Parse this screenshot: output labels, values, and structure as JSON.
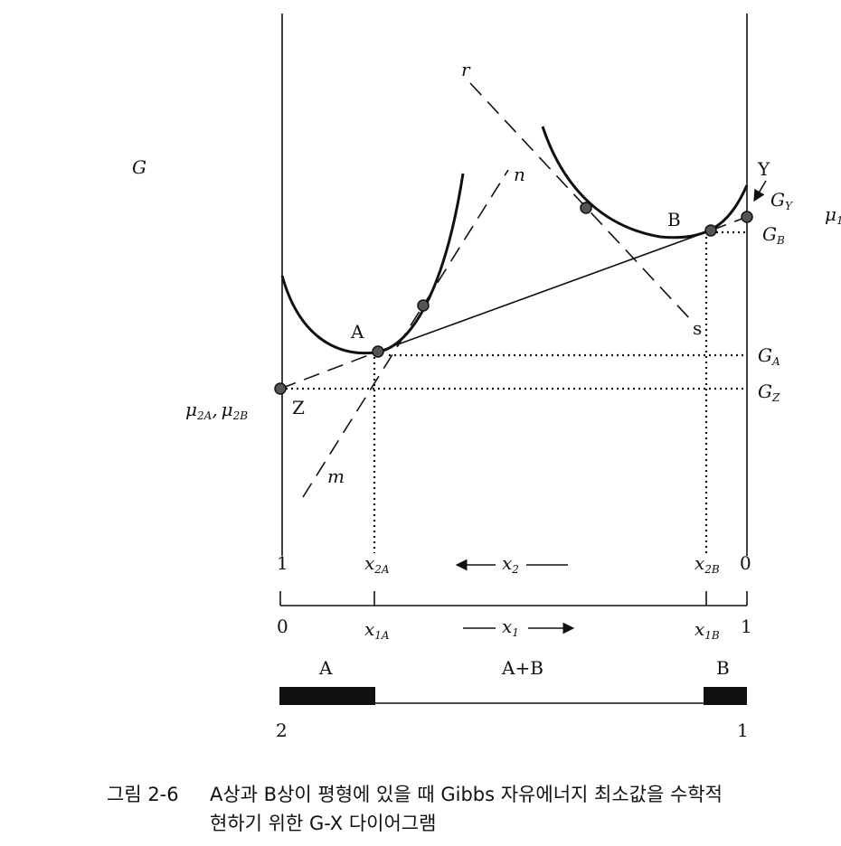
{
  "axis_label": "G",
  "points": {
    "Y": "Y",
    "B": "B",
    "A": "A",
    "Z": "Z"
  },
  "tangent_labels": {
    "r": "r",
    "n": "n",
    "s": "s",
    "m": "m"
  },
  "levels": {
    "GY": {
      "symbol": "G",
      "sub": "Y"
    },
    "GB": {
      "symbol": "G",
      "sub": "B"
    },
    "GA": {
      "symbol": "G",
      "sub": "A"
    },
    "GZ": {
      "symbol": "G",
      "sub": "Z"
    },
    "mu1": {
      "symbol": "μ",
      "sub": "1"
    },
    "mu2": [
      {
        "symbol": "μ",
        "sub": "2A"
      },
      {
        "symbol": "μ",
        "sub": "2B"
      }
    ],
    "mu2_separator": ","
  },
  "axis_x2": {
    "left": "1",
    "x2A": {
      "symbol": "x",
      "sub": "2A"
    },
    "x2": {
      "symbol": "x",
      "sub": "2"
    },
    "x2B": {
      "symbol": "x",
      "sub": "2B"
    },
    "right": "0"
  },
  "axis_x1": {
    "left": "0",
    "x1A": {
      "symbol": "x",
      "sub": "1A"
    },
    "x1": {
      "symbol": "x",
      "sub": "1"
    },
    "x1B": {
      "symbol": "x",
      "sub": "1B"
    },
    "right": "1"
  },
  "phases": {
    "A": "A",
    "AB": "A+B",
    "B": "B",
    "left": "2",
    "right": "1"
  },
  "caption": {
    "number": "그림 2-6",
    "line1": "A상과 B상이 평형에 있을 때 Gibbs 자유에너지 최소값을 수학적",
    "line2": "현하기 위한 G-X 다이어그램"
  }
}
